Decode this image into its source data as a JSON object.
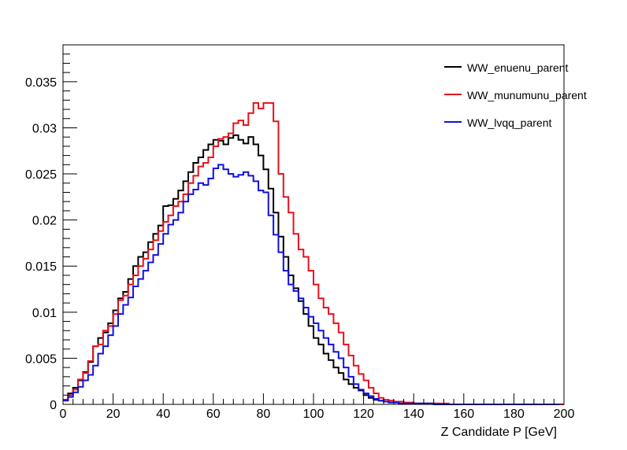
{
  "chart_data": {
    "type": "line",
    "style": "step-histogram",
    "xlabel": "Z Candidate P [GeV]",
    "ylabel": "",
    "xlim": [
      0,
      200
    ],
    "ylim": [
      0,
      0.039
    ],
    "x_ticks": [
      0,
      20,
      40,
      60,
      80,
      100,
      120,
      140,
      160,
      180,
      200
    ],
    "x_tick_labels": [
      "0",
      "20",
      "40",
      "60",
      "80",
      "100",
      "120",
      "140",
      "160",
      "180",
      "200"
    ],
    "y_ticks": [
      0,
      0.005,
      0.01,
      0.015,
      0.02,
      0.025,
      0.03,
      0.035
    ],
    "y_tick_labels": [
      "0",
      "0.005",
      "0.01",
      "0.015",
      "0.02",
      "0.025",
      "0.03",
      "0.035"
    ],
    "grid": false,
    "legend_position": "top-right",
    "bin_width": 2,
    "series": [
      {
        "name": "WW_enuenu_parent",
        "color": "#000000",
        "values": [
          0.0005,
          0.0012,
          0.0018,
          0.0026,
          0.0035,
          0.0046,
          0.0063,
          0.0072,
          0.0078,
          0.0088,
          0.0102,
          0.0115,
          0.0122,
          0.0136,
          0.015,
          0.016,
          0.0165,
          0.0176,
          0.0185,
          0.0194,
          0.0215,
          0.0216,
          0.0223,
          0.0232,
          0.0242,
          0.0252,
          0.0262,
          0.0268,
          0.0276,
          0.0282,
          0.0287,
          0.0286,
          0.0282,
          0.0289,
          0.0292,
          0.0287,
          0.0283,
          0.029,
          0.0282,
          0.027,
          0.0255,
          0.0234,
          0.0208,
          0.0182,
          0.016,
          0.014,
          0.0126,
          0.0112,
          0.0098,
          0.0085,
          0.0072,
          0.0065,
          0.0055,
          0.0048,
          0.004,
          0.0034,
          0.0027,
          0.0022,
          0.0018,
          0.0015,
          0.001,
          0.0007,
          0.0005,
          0.0004,
          0.0003,
          0.0002,
          0.0002,
          0.0001,
          0.0001,
          0.0001,
          0.0001,
          0.0001,
          0.0001,
          0.0001,
          0.0001,
          0,
          0,
          0,
          0,
          0,
          0,
          0,
          0,
          0,
          0,
          0,
          0,
          0,
          0,
          0,
          0,
          0,
          0,
          0,
          0,
          0,
          0,
          0,
          0,
          0
        ]
      },
      {
        "name": "WW_munumunu_parent",
        "color": "#e8101a",
        "values": [
          0.0005,
          0.001,
          0.0016,
          0.0027,
          0.0034,
          0.0047,
          0.0063,
          0.0065,
          0.008,
          0.0085,
          0.0098,
          0.0113,
          0.0118,
          0.013,
          0.014,
          0.015,
          0.0158,
          0.0168,
          0.0178,
          0.0188,
          0.0198,
          0.0205,
          0.0215,
          0.022,
          0.0228,
          0.024,
          0.0248,
          0.0258,
          0.0262,
          0.0268,
          0.028,
          0.0288,
          0.029,
          0.0294,
          0.0305,
          0.0308,
          0.0303,
          0.0316,
          0.0327,
          0.0321,
          0.0327,
          0.0327,
          0.0307,
          0.025,
          0.0225,
          0.0208,
          0.0185,
          0.0168,
          0.016,
          0.0145,
          0.013,
          0.0115,
          0.0105,
          0.0098,
          0.0088,
          0.0078,
          0.0065,
          0.0053,
          0.0042,
          0.0033,
          0.0026,
          0.0018,
          0.0012,
          0.0007,
          0.0005,
          0.0004,
          0.0003,
          0.0003,
          0.0002,
          0.0002,
          0.0001,
          0.0001,
          0.0001,
          0.0001,
          0.0001,
          0.0001,
          0.0001,
          0,
          0,
          0,
          0,
          0,
          0,
          0,
          0,
          0,
          0,
          0,
          0,
          0,
          0,
          0,
          0,
          0,
          0,
          0,
          0,
          0,
          0,
          0
        ]
      },
      {
        "name": "WW_lvqq_parent",
        "color": "#1010e0",
        "values": [
          0.0004,
          0.0008,
          0.0013,
          0.0019,
          0.0026,
          0.0032,
          0.0042,
          0.0055,
          0.0063,
          0.0075,
          0.0085,
          0.0098,
          0.0108,
          0.0116,
          0.0128,
          0.0136,
          0.0145,
          0.0154,
          0.0162,
          0.0174,
          0.0185,
          0.0195,
          0.02,
          0.0208,
          0.022,
          0.0228,
          0.0233,
          0.024,
          0.0238,
          0.0245,
          0.0256,
          0.026,
          0.0255,
          0.025,
          0.0247,
          0.0249,
          0.0252,
          0.0248,
          0.0242,
          0.0232,
          0.023,
          0.0205,
          0.0184,
          0.0165,
          0.0145,
          0.013,
          0.0123,
          0.0115,
          0.0105,
          0.0095,
          0.0088,
          0.008,
          0.0072,
          0.0065,
          0.0057,
          0.005,
          0.004,
          0.003,
          0.0022,
          0.0016,
          0.0012,
          0.0009,
          0.0006,
          0.0004,
          0.0003,
          0.0002,
          0.0002,
          0.0001,
          0.0001,
          0.0001,
          0.0001,
          0.0001,
          0.0001,
          0.0001,
          0,
          0,
          0,
          0,
          0,
          0,
          0,
          0,
          0,
          0,
          0,
          0,
          0,
          0,
          0,
          0,
          0,
          0,
          0,
          0,
          0,
          0,
          0,
          0,
          0
        ]
      }
    ]
  }
}
